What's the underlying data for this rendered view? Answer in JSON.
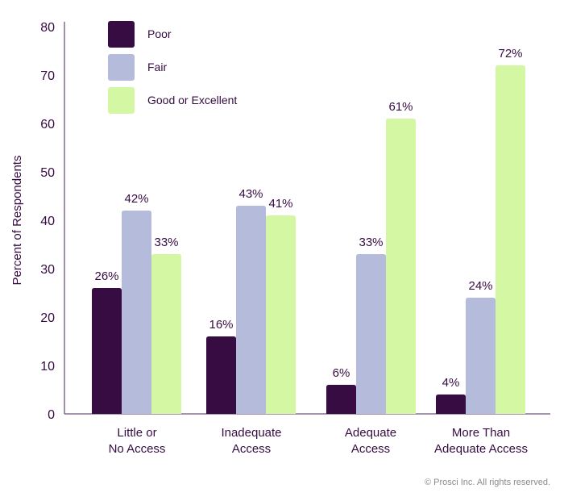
{
  "chart_data": {
    "type": "bar",
    "title": "",
    "xlabel": "",
    "ylabel": "Percent of Respondents",
    "ylim": [
      0,
      80
    ],
    "yticks": [
      0,
      10,
      20,
      30,
      40,
      50,
      60,
      70,
      80
    ],
    "grid": false,
    "legend_position": "top-left",
    "categories": [
      [
        "Little or",
        "No Access"
      ],
      [
        "Inadequate",
        "Access"
      ],
      [
        "Adequate",
        "Access"
      ],
      [
        "More Than",
        "Adequate Access"
      ]
    ],
    "series": [
      {
        "name": "Poor",
        "color": "#360c42",
        "values": [
          26,
          16,
          6,
          4
        ],
        "labels": [
          "26%",
          "16%",
          "6%",
          "4%"
        ]
      },
      {
        "name": "Fair",
        "color": "#b4bbdb",
        "values": [
          42,
          43,
          33,
          24
        ],
        "labels": [
          "42%",
          "43%",
          "33%",
          "24%"
        ]
      },
      {
        "name": "Good or Excellent",
        "color": "#d4f7a3",
        "values": [
          33,
          41,
          61,
          72
        ],
        "labels": [
          "33%",
          "41%",
          "61%",
          "72%"
        ]
      }
    ]
  },
  "footer": {
    "copyright": "© Prosci Inc. All rights reserved."
  }
}
